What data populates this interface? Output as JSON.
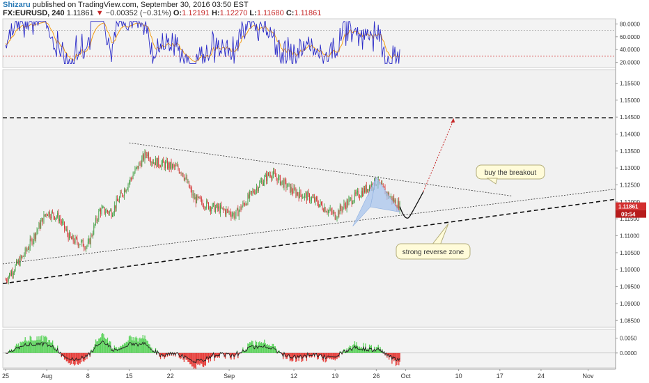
{
  "header": {
    "author": "Shizaru",
    "published_text": "published on TradingView.com, September 30, 2016 03:50 EST",
    "symbol": "FX:EURUSD, 240",
    "last": "1.11861",
    "arrow": "▼",
    "change": "−0.00352 (−0.31%)",
    "o_key": "O:",
    "o_val": "1.12191",
    "h_key": "H:",
    "h_val": "1.12270",
    "l_key": "L:",
    "l_val": "1.11680",
    "c_key": "C:",
    "c_val": "1.11861"
  },
  "price_axis": {
    "ticks": [
      "1.15500",
      "1.15000",
      "1.14500",
      "1.14000",
      "1.13500",
      "1.13000",
      "1.12500",
      "1.12000",
      "1.11500",
      "1.11000",
      "1.10500",
      "1.10000",
      "1.09500",
      "1.09000",
      "1.08500"
    ],
    "last_price_label": "1.11861",
    "countdown_label": "09:54"
  },
  "rsi_axis": {
    "ticks": [
      "80.0000",
      "60.0000",
      "40.0000",
      "20.0000"
    ]
  },
  "osc_axis": {
    "ticks": [
      "0.0050",
      "0.0000"
    ]
  },
  "time_axis": {
    "labels": [
      "25",
      "Aug",
      "8",
      "15",
      "22",
      "Sep",
      "12",
      "19",
      "26",
      "Oct",
      "10",
      "17",
      "24",
      "Nov"
    ]
  },
  "annotations": {
    "buy_breakout": "buy the breakout",
    "strong_reverse": "strong reverse zone"
  },
  "colors": {
    "candle_up": "#3a9a3a",
    "candle_down": "#d32f2f",
    "rsi_line": "#2c2cc8",
    "rsi_signal": "#f39c12",
    "osc_up": "#5bd35b",
    "osc_down": "#e53935",
    "pattern_fill": "#a8c4ec",
    "price_tag": "#d32f2f"
  },
  "chart_data": {
    "type": "candlestick",
    "symbol": "FX:EURUSD",
    "timeframe": "240",
    "date_labels": [
      "25",
      "Aug",
      "8",
      "15",
      "22",
      "Sep",
      "12",
      "19",
      "26",
      "Oct",
      "10",
      "17",
      "24",
      "Nov"
    ],
    "ylim": [
      1.083,
      1.159
    ],
    "close_path": [
      [
        "Jul 25",
        1.097
      ],
      [
        "Jul 28",
        1.104
      ],
      [
        "Aug 1",
        1.117
      ],
      [
        "Aug 3",
        1.1155
      ],
      [
        "Aug 5",
        1.109
      ],
      [
        "Aug 8",
        1.107
      ],
      [
        "Aug 10",
        1.1175
      ],
      [
        "Aug 12",
        1.117
      ],
      [
        "Aug 16",
        1.129
      ],
      [
        "Aug 18",
        1.1345
      ],
      [
        "Aug 19",
        1.132
      ],
      [
        "Aug 23",
        1.13
      ],
      [
        "Aug 24",
        1.129
      ],
      [
        "Aug 26",
        1.121
      ],
      [
        "Aug 29",
        1.1185
      ],
      [
        "Sep 1",
        1.117
      ],
      [
        "Sep 2",
        1.116
      ],
      [
        "Sep 6",
        1.125
      ],
      [
        "Sep 8",
        1.1285
      ],
      [
        "Sep 12",
        1.123
      ],
      [
        "Sep 15",
        1.121
      ],
      [
        "Sep 19",
        1.116
      ],
      [
        "Sep 20",
        1.118
      ],
      [
        "Sep 22",
        1.121
      ],
      [
        "Sep 26",
        1.126
      ],
      [
        "Sep 28",
        1.122
      ],
      [
        "Sep 30",
        1.11861
      ]
    ],
    "horizontal_levels": [
      1.1448
    ],
    "last_price": 1.11861,
    "rsi_ylim": [
      12,
      88
    ],
    "rsi_levels": [
      70,
      30
    ],
    "osc_ylim": [
      -0.005,
      0.008
    ]
  }
}
